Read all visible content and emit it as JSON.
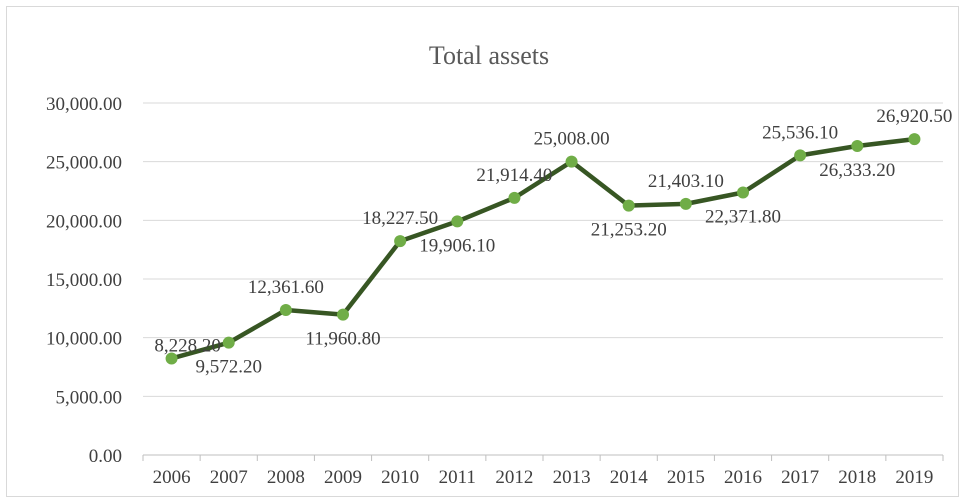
{
  "chart_data": {
    "type": "line",
    "title": "Total assets",
    "xlabel": "",
    "ylabel": "",
    "categories": [
      "2006",
      "2007",
      "2008",
      "2009",
      "2010",
      "2011",
      "2012",
      "2013",
      "2014",
      "2015",
      "2016",
      "2017",
      "2018",
      "2019"
    ],
    "series": [
      {
        "values": [
          8228.2,
          9572.2,
          12361.6,
          11960.8,
          18227.5,
          19906.1,
          21914.4,
          25008.0,
          21253.2,
          21403.1,
          22371.8,
          25536.1,
          26333.2,
          26920.5
        ],
        "labels": [
          "8,228.20",
          "9,572.20",
          "12,361.60",
          "11,960.80",
          "18,227.50",
          "19,906.10",
          "21,914.40",
          "25,008.00",
          "21,253.20",
          "21,403.10",
          "22,371.80",
          "25,536.10",
          "26,333.20",
          "26,920.50"
        ]
      }
    ],
    "ylim": [
      0,
      30000
    ],
    "yticks": [
      0,
      5000,
      10000,
      15000,
      20000,
      25000,
      30000
    ],
    "ytick_labels": [
      "0.00",
      "5,000.00",
      "10,000.00",
      "15,000.00",
      "20,000.00",
      "25,000.00",
      "30,000.00"
    ],
    "grid": "horizontal",
    "legend": "none",
    "colors": {
      "line": "#375623",
      "marker": "#70ad47",
      "grid": "#d9d9d9",
      "axis": "#bfbfbf"
    }
  }
}
